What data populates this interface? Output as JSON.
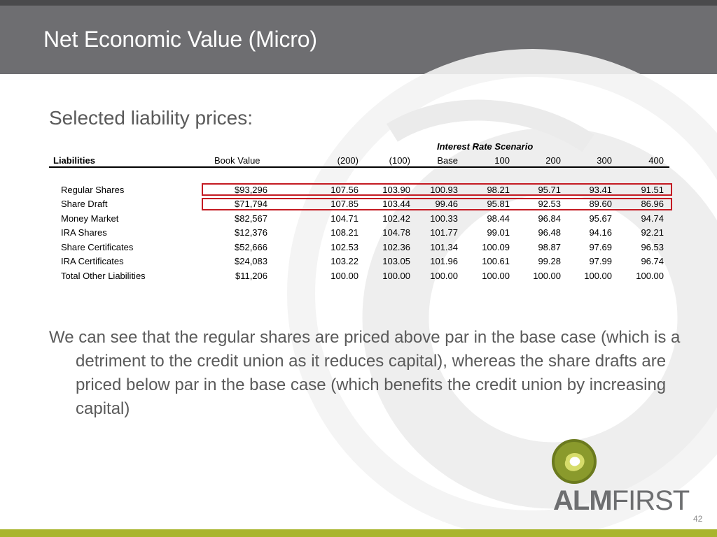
{
  "slide": {
    "title": "Net Economic Value (Micro)",
    "subtitle": "Selected liability prices:",
    "paragraph": "We can see that the regular shares are priced above par in the base case (which is a detriment to the credit union as it reduces capital), whereas the share drafts are priced below par in the base case (which benefits the credit union by increasing capital)",
    "page_number": "42"
  },
  "table": {
    "scenario_header": "Interest Rate Scenario",
    "columns": [
      "Liabilities",
      "Book Value",
      "(200)",
      "(100)",
      "Base",
      "100",
      "200",
      "300",
      "400"
    ],
    "rows": [
      {
        "name": "Regular Shares",
        "book": "$93,296",
        "v": [
          "107.56",
          "103.90",
          "100.93",
          "98.21",
          "95.71",
          "93.41",
          "91.51"
        ],
        "highlighted": true
      },
      {
        "name": "Share Draft",
        "book": "$71,794",
        "v": [
          "107.85",
          "103.44",
          "99.46",
          "95.81",
          "92.53",
          "89.60",
          "86.96"
        ],
        "highlighted": true
      },
      {
        "name": "Money Market",
        "book": "$82,567",
        "v": [
          "104.71",
          "102.42",
          "100.33",
          "98.44",
          "96.84",
          "95.67",
          "94.74"
        ],
        "highlighted": false
      },
      {
        "name": "IRA Shares",
        "book": "$12,376",
        "v": [
          "108.21",
          "104.78",
          "101.77",
          "99.01",
          "96.48",
          "94.16",
          "92.21"
        ],
        "highlighted": false
      },
      {
        "name": "Share Certificates",
        "book": "$52,666",
        "v": [
          "102.53",
          "102.36",
          "101.34",
          "100.09",
          "98.87",
          "97.69",
          "96.53"
        ],
        "highlighted": false
      },
      {
        "name": "IRA Certificates",
        "book": "$24,083",
        "v": [
          "103.22",
          "103.05",
          "101.96",
          "100.61",
          "99.28",
          "97.99",
          "96.74"
        ],
        "highlighted": false
      },
      {
        "name": "Total Other Liabilities",
        "book": "$11,206",
        "v": [
          "100.00",
          "100.00",
          "100.00",
          "100.00",
          "100.00",
          "100.00",
          "100.00"
        ],
        "highlighted": false
      }
    ]
  },
  "logo": {
    "text_bold": "ALM",
    "text_light": "FIRST"
  },
  "colors": {
    "header_bg": "#6e6e71",
    "accent_green": "#a9b52d",
    "highlight_red": "#c41a22"
  }
}
